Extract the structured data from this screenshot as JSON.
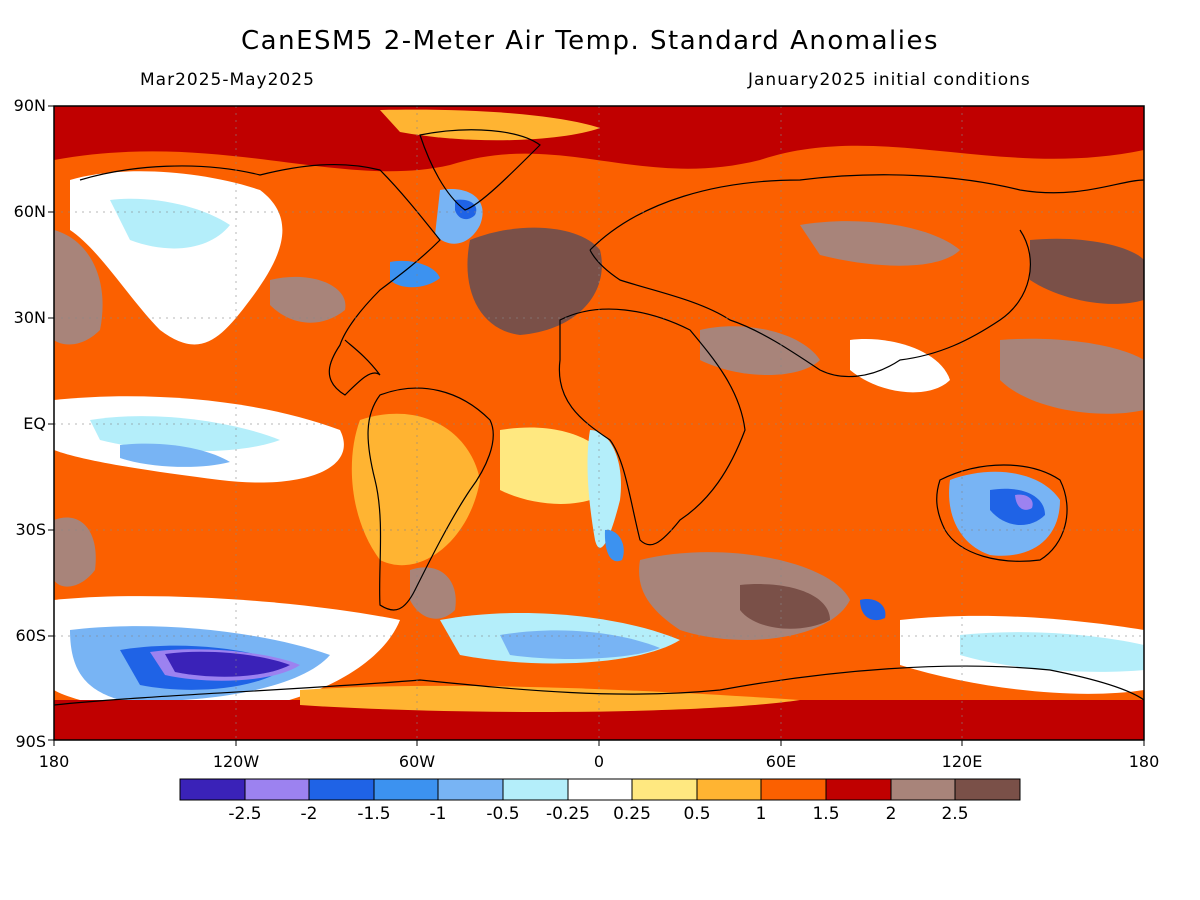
{
  "header": {
    "title": "CanESM5 2-Meter Air Temp. Standard Anomalies",
    "period": "Mar2025-May2025",
    "init": "January2025 initial conditions"
  },
  "axes": {
    "lat_labels": [
      "90N",
      "60N",
      "30N",
      "EQ",
      "30S",
      "60S",
      "90S"
    ],
    "lon_labels": [
      "180",
      "120W",
      "60W",
      "0",
      "60E",
      "120E",
      "180"
    ]
  },
  "colorbar": {
    "colors": [
      "#3a22b8",
      "#9c82f0",
      "#1f63e6",
      "#3c92f0",
      "#78b4f4",
      "#b4eefa",
      "#ffffff",
      "#ffe880",
      "#ffb432",
      "#fb6000",
      "#c00000",
      "#a8847a",
      "#7a5048"
    ],
    "labels": [
      "-2.5",
      "-2",
      "-1.5",
      "-1",
      "-0.5",
      "-0.25",
      "0.25",
      "0.5",
      "1",
      "1.5",
      "2",
      "2.5"
    ]
  },
  "map": {
    "lat_range": [
      -90,
      90
    ],
    "lon_range": [
      -180,
      180
    ],
    "background": "#fb6000"
  }
}
